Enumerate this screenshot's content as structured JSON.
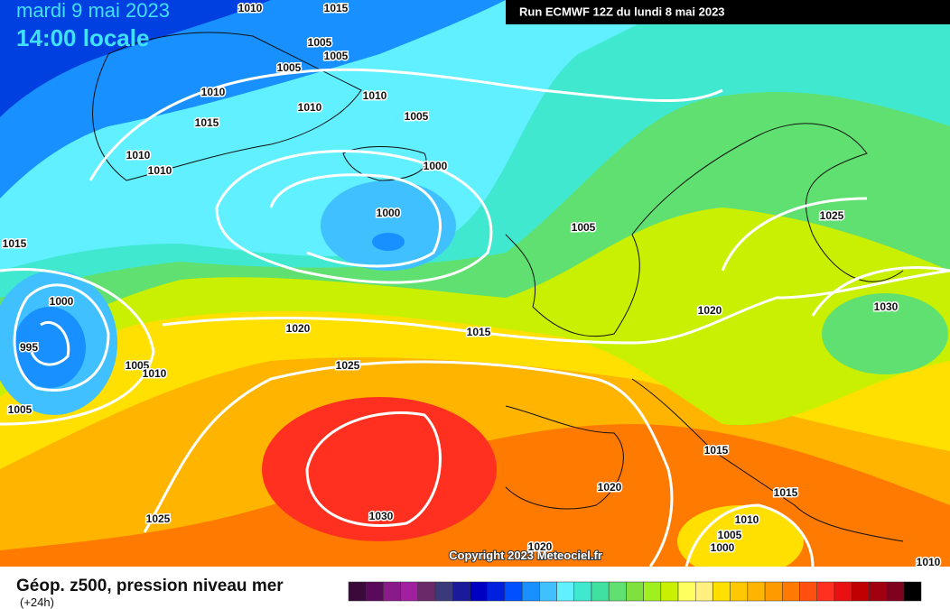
{
  "header": {
    "date": "mardi 9 mai 2023",
    "time": "14:00 locale",
    "run": "Run ECMWF 12Z du lundi 8 mai 2023"
  },
  "isobar_labels": [
    1010,
    1015,
    1005,
    1005,
    1005,
    1010,
    1010,
    1010,
    1005,
    1015,
    1010,
    1010,
    1000,
    1000,
    1005,
    1025,
    1015,
    1000,
    1020,
    1030,
    995,
    1020,
    1015,
    1005,
    1010,
    1025,
    1005,
    1015,
    1020,
    1015,
    1025,
    1030,
    1010,
    1005,
    1000,
    1020,
    1010
  ],
  "copyright": "Copyright 2023 Meteociel.fr",
  "footer": {
    "title": "Géop. z500, pression niveau mer",
    "lead": "(+24h)"
  }
}
